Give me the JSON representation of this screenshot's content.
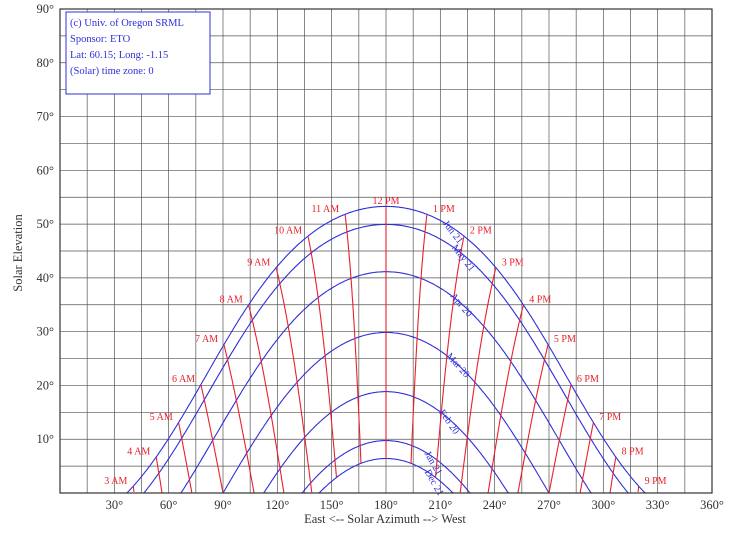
{
  "info": {
    "line1": "(c) Univ. of Oregon SRML",
    "line2": "Sponsor: ETO",
    "line3": "Lat: 60.15; Long: -1.15",
    "line4": "(Solar) time zone: 0"
  },
  "colors": {
    "grid": "#555555",
    "frame": "#333333",
    "date_curve": "#2f2fd8",
    "hour_line": "#e8202a",
    "text": "#333333"
  },
  "chart_data": {
    "type": "line",
    "title": "",
    "xlabel": "East <-- Solar Azimuth --> West",
    "ylabel": "Solar Elevation",
    "xlim": [
      0,
      360
    ],
    "ylim": [
      0,
      90
    ],
    "grid": true,
    "x_ticks": [
      {
        "value": 30,
        "label": "30°"
      },
      {
        "value": 60,
        "label": "60°"
      },
      {
        "value": 90,
        "label": "90°"
      },
      {
        "value": 120,
        "label": "120°"
      },
      {
        "value": 150,
        "label": "150°"
      },
      {
        "value": 180,
        "label": "180°"
      },
      {
        "value": 210,
        "label": "210°"
      },
      {
        "value": 240,
        "label": "240°"
      },
      {
        "value": 270,
        "label": "270°"
      },
      {
        "value": 300,
        "label": "300°"
      },
      {
        "value": 330,
        "label": "330°"
      },
      {
        "value": 360,
        "label": "360°"
      }
    ],
    "y_ticks": [
      {
        "value": 10,
        "label": "10°"
      },
      {
        "value": 20,
        "label": "20°"
      },
      {
        "value": 30,
        "label": "30°"
      },
      {
        "value": 40,
        "label": "40°"
      },
      {
        "value": 50,
        "label": "50°"
      },
      {
        "value": 60,
        "label": "60°"
      },
      {
        "value": 70,
        "label": "70°"
      },
      {
        "value": 80,
        "label": "80°"
      },
      {
        "value": 90,
        "label": "90°"
      }
    ],
    "latitude": 60.15,
    "date_curves": [
      {
        "label": "Jun 21",
        "declination": 23.44,
        "label_az": 210,
        "label_rot": 52
      },
      {
        "label": "May 21",
        "declination": 20.1,
        "label_az": 215,
        "label_rot": 52
      },
      {
        "label": "Apr 20",
        "declination": 11.3,
        "label_az": 214,
        "label_rot": 50
      },
      {
        "label": "Mar 20",
        "declination": 0.0,
        "label_az": 212,
        "label_rot": 48
      },
      {
        "label": "Feb 20",
        "declination": -11.0,
        "label_az": 208,
        "label_rot": 55
      },
      {
        "label": "Jan 21",
        "declination": -20.1,
        "label_az": 200,
        "label_rot": 60
      },
      {
        "label": "Dec 21",
        "declination": -23.44,
        "label_az": 200,
        "label_rot": 60
      }
    ],
    "hour_lines": [
      {
        "label": "3 AM",
        "hour": 3
      },
      {
        "label": "4 AM",
        "hour": 4
      },
      {
        "label": "5 AM",
        "hour": 5
      },
      {
        "label": "6 AM",
        "hour": 6
      },
      {
        "label": "7 AM",
        "hour": 7
      },
      {
        "label": "8 AM",
        "hour": 8
      },
      {
        "label": "9 AM",
        "hour": 9
      },
      {
        "label": "10 AM",
        "hour": 10
      },
      {
        "label": "11 AM",
        "hour": 11
      },
      {
        "label": "12 PM",
        "hour": 12
      },
      {
        "label": "1 PM",
        "hour": 13
      },
      {
        "label": "2 PM",
        "hour": 14
      },
      {
        "label": "3 PM",
        "hour": 15
      },
      {
        "label": "4 PM",
        "hour": 16
      },
      {
        "label": "5 PM",
        "hour": 17
      },
      {
        "label": "6 PM",
        "hour": 18
      },
      {
        "label": "7 PM",
        "hour": 19
      },
      {
        "label": "8 PM",
        "hour": 20
      },
      {
        "label": "9 PM",
        "hour": 21
      }
    ]
  }
}
